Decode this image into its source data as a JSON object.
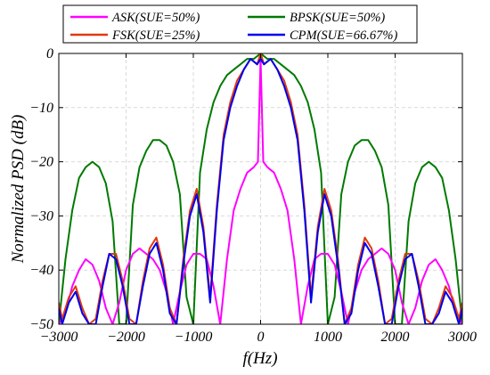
{
  "chart_data": {
    "type": "line",
    "title": "",
    "xlabel": "f(Hz)",
    "ylabel": "Normalized PSD (dB)",
    "xlim": [
      -3000,
      3000
    ],
    "ylim": [
      -50,
      0
    ],
    "xticks": [
      -3000,
      -2000,
      -1000,
      0,
      1000,
      2000,
      3000
    ],
    "yticks": [
      0,
      -10,
      -20,
      -30,
      -40,
      -50
    ],
    "xtick_labels": [
      "−3000",
      "−2000",
      "−1000",
      "0",
      "1000",
      "2000",
      "3000"
    ],
    "ytick_labels": [
      "0",
      "−10",
      "−20",
      "−30",
      "−40",
      "−50"
    ],
    "grid": true,
    "legend_position": "top",
    "series": [
      {
        "name": "ASK(SUE=50%)",
        "color": "#ff00ff",
        "x": [
          -3000,
          -2900,
          -2800,
          -2700,
          -2600,
          -2500,
          -2400,
          -2300,
          -2200,
          -2100,
          -2000,
          -1900,
          -1800,
          -1700,
          -1600,
          -1500,
          -1400,
          -1300,
          -1200,
          -1100,
          -1000,
          -900,
          -800,
          -700,
          -600,
          -500,
          -400,
          -300,
          -200,
          -100,
          -40,
          0,
          40,
          100,
          200,
          300,
          400,
          500,
          600,
          700,
          800,
          900,
          1000,
          1100,
          1200,
          1300,
          1400,
          1500,
          1600,
          1700,
          1800,
          1900,
          2000,
          2100,
          2200,
          2300,
          2400,
          2500,
          2600,
          2700,
          2800,
          2900,
          3000
        ],
        "y": [
          -50,
          -48,
          -43,
          -40,
          -38,
          -39,
          -42,
          -47,
          -50,
          -46,
          -40,
          -37,
          -36,
          -37,
          -38,
          -40,
          -44,
          -50,
          -44,
          -39,
          -37,
          -37,
          -38,
          -43,
          -50,
          -38,
          -29,
          -25,
          -22,
          -21,
          -20,
          -1,
          -20,
          -21,
          -22,
          -25,
          -29,
          -38,
          -50,
          -43,
          -38,
          -37,
          -37,
          -39,
          -44,
          -50,
          -44,
          -40,
          -38,
          -37,
          -36,
          -37,
          -40,
          -46,
          -50,
          -47,
          -42,
          -39,
          -38,
          -40,
          -43,
          -48,
          -50
        ]
      },
      {
        "name": "BPSK(SUE=50%)",
        "color": "#007a00",
        "x": [
          -3000,
          -2900,
          -2800,
          -2700,
          -2600,
          -2500,
          -2400,
          -2300,
          -2200,
          -2100,
          -2000,
          -1900,
          -1800,
          -1700,
          -1600,
          -1500,
          -1400,
          -1300,
          -1200,
          -1100,
          -1000,
          -900,
          -800,
          -700,
          -600,
          -500,
          -400,
          -300,
          -200,
          -100,
          0,
          100,
          200,
          300,
          400,
          500,
          600,
          700,
          800,
          900,
          1000,
          1100,
          1200,
          1300,
          1400,
          1500,
          1600,
          1700,
          1800,
          1900,
          2000,
          2100,
          2200,
          2300,
          2400,
          2500,
          2600,
          2700,
          2800,
          2900,
          3000
        ],
        "y": [
          -50,
          -38,
          -29,
          -23,
          -21,
          -20,
          -21,
          -24,
          -31,
          -50,
          -50,
          -28,
          -21,
          -18,
          -16,
          -16,
          -17,
          -20,
          -26,
          -45,
          -50,
          -22,
          -14,
          -9,
          -6,
          -4,
          -3,
          -2,
          -1,
          -1,
          0,
          -1,
          -1,
          -2,
          -3,
          -4,
          -6,
          -9,
          -14,
          -22,
          -50,
          -45,
          -26,
          -20,
          -17,
          -16,
          -16,
          -18,
          -21,
          -28,
          -50,
          -50,
          -31,
          -24,
          -21,
          -20,
          -21,
          -23,
          -29,
          -38,
          -50
        ]
      },
      {
        "name": "FSK(SUE=25%)",
        "color": "#e03a10",
        "x": [
          -3000,
          -2950,
          -2850,
          -2750,
          -2650,
          -2550,
          -2450,
          -2350,
          -2250,
          -2150,
          -2050,
          -1950,
          -1850,
          -1750,
          -1650,
          -1550,
          -1450,
          -1350,
          -1250,
          -1150,
          -1050,
          -950,
          -850,
          -750,
          -650,
          -550,
          -450,
          -350,
          -250,
          -150,
          -50,
          0,
          50,
          150,
          250,
          350,
          450,
          550,
          650,
          750,
          850,
          950,
          1050,
          1150,
          1250,
          1350,
          1450,
          1550,
          1650,
          1750,
          1850,
          1950,
          2050,
          2150,
          2250,
          2350,
          2450,
          2550,
          2650,
          2750,
          2850,
          2950,
          3000
        ],
        "y": [
          -46,
          -49,
          -45,
          -43,
          -47,
          -50,
          -49,
          -42,
          -37,
          -37,
          -42,
          -49,
          -50,
          -42,
          -36,
          -34,
          -39,
          -47,
          -50,
          -38,
          -29,
          -25,
          -32,
          -45,
          -28,
          -15,
          -9,
          -5,
          -3,
          -1,
          -2,
          0,
          -2,
          -1,
          -3,
          -5,
          -9,
          -15,
          -28,
          -45,
          -32,
          -25,
          -29,
          -38,
          -50,
          -47,
          -39,
          -34,
          -36,
          -42,
          -50,
          -49,
          -42,
          -37,
          -37,
          -42,
          -49,
          -50,
          -47,
          -43,
          -45,
          -49,
          -46
        ]
      },
      {
        "name": "CPM(SUE=66.67%)",
        "color": "#0000ee",
        "x": [
          -3000,
          -2950,
          -2850,
          -2750,
          -2650,
          -2550,
          -2450,
          -2350,
          -2250,
          -2150,
          -2050,
          -1950,
          -1850,
          -1750,
          -1650,
          -1550,
          -1450,
          -1350,
          -1250,
          -1150,
          -1050,
          -950,
          -850,
          -750,
          -650,
          -550,
          -450,
          -350,
          -250,
          -150,
          -50,
          0,
          50,
          150,
          250,
          350,
          450,
          550,
          650,
          750,
          850,
          950,
          1050,
          1150,
          1250,
          1350,
          1450,
          1550,
          1650,
          1750,
          1850,
          1950,
          2050,
          2150,
          2250,
          2350,
          2450,
          2550,
          2650,
          2750,
          2850,
          2950,
          3000
        ],
        "y": [
          -47,
          -50,
          -46,
          -44,
          -48,
          -50,
          -50,
          -43,
          -37,
          -38,
          -43,
          -50,
          -50,
          -43,
          -37,
          -35,
          -40,
          -48,
          -50,
          -39,
          -30,
          -26,
          -33,
          -46,
          -29,
          -16,
          -10,
          -6,
          -3,
          -1,
          -2,
          -1,
          -2,
          -1,
          -3,
          -6,
          -10,
          -16,
          -29,
          -46,
          -33,
          -26,
          -30,
          -39,
          -50,
          -48,
          -40,
          -35,
          -37,
          -43,
          -50,
          -50,
          -43,
          -38,
          -37,
          -43,
          -50,
          -50,
          -48,
          -44,
          -46,
          -50,
          -47
        ]
      }
    ]
  }
}
